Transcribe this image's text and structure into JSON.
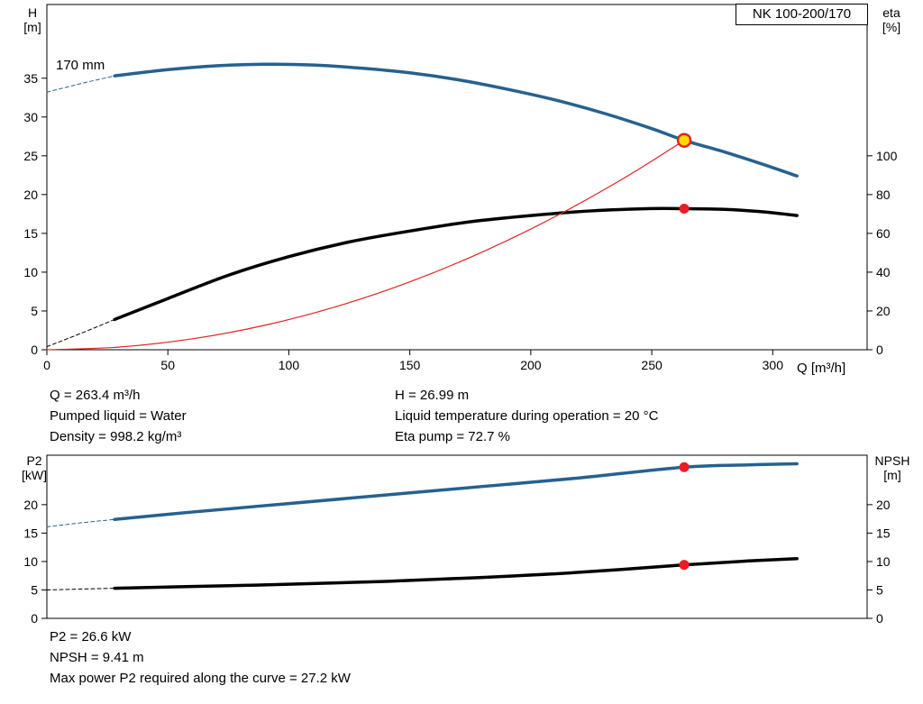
{
  "duty_point": {
    "q_m3h": 263.4,
    "h_m": 26.99,
    "eta_percent": 72.7,
    "p2_kw": 26.6,
    "npsh_m": 9.41,
    "max_p2_along_curve_kw": 27.2,
    "pumped_liquid": "Water",
    "density_kg_m3": 998.2,
    "liquid_temperature_c": 20
  },
  "annotations": {
    "top_left": [
      "Q = 263.4 m³/h",
      "Pumped liquid = Water",
      "Density = 998.2 kg/m³"
    ],
    "top_right": [
      "H = 26.99 m",
      "Liquid temperature during operation = 20 °C",
      "Eta pump = 72.7 %"
    ],
    "bottom": [
      "P2 = 26.6 kW",
      "NPSH = 9.41 m",
      "Max power P2 required along the curve = 27.2 kW"
    ]
  },
  "chart_data": [
    {
      "id": "top",
      "type": "line",
      "title": "NK 100-200/170",
      "curve_label": "170 mm",
      "x_axis": {
        "label": "Q [m³/h]",
        "min": 0,
        "max": 339,
        "ticks": [
          0,
          50,
          100,
          150,
          200,
          250,
          300
        ],
        "show_labels": true
      },
      "y_left": {
        "label_lines": [
          "H",
          "[m]"
        ],
        "min": 0,
        "max": 44.5,
        "ticks": [
          0,
          5,
          10,
          15,
          20,
          25,
          30,
          35
        ]
      },
      "y_right": {
        "label_lines": [
          "eta",
          "[%]"
        ],
        "ticks": [
          0,
          20,
          40,
          60,
          80,
          100
        ],
        "scale": 0.25
      },
      "legend": "off",
      "grid": "off",
      "series": [
        {
          "name": "head-curve-extension",
          "color": "#26618f",
          "width": 1,
          "dash": "4 3",
          "points": [
            [
              0,
              33.2
            ],
            [
              14,
              34.3
            ],
            [
              28,
              35.3
            ]
          ]
        },
        {
          "name": "head-curve",
          "color": "#26618f",
          "width": 3.5,
          "points": [
            [
              28,
              35.3
            ],
            [
              50,
              36.1
            ],
            [
              70,
              36.6
            ],
            [
              90,
              36.8
            ],
            [
              110,
              36.7
            ],
            [
              130,
              36.3
            ],
            [
              150,
              35.7
            ],
            [
              170,
              34.8
            ],
            [
              190,
              33.6
            ],
            [
              210,
              32.2
            ],
            [
              230,
              30.5
            ],
            [
              250,
              28.5
            ],
            [
              263.4,
              26.99
            ],
            [
              280,
              25.5
            ],
            [
              295,
              24.0
            ],
            [
              310,
              22.4
            ]
          ]
        },
        {
          "name": "eta-curve-extension",
          "color": "#000000",
          "width": 1,
          "dash": "4 3",
          "points": [
            [
              0,
              0.4
            ],
            [
              14,
              2.1
            ],
            [
              28,
              3.9
            ]
          ]
        },
        {
          "name": "eta-curve",
          "color": "#000000",
          "width": 3.5,
          "points": [
            [
              28,
              3.9
            ],
            [
              50,
              6.6
            ],
            [
              75,
              9.6
            ],
            [
              100,
              12.0
            ],
            [
              125,
              13.9
            ],
            [
              150,
              15.3
            ],
            [
              175,
              16.5
            ],
            [
              200,
              17.3
            ],
            [
              225,
              17.9
            ],
            [
              250,
              18.2
            ],
            [
              263.4,
              18.18
            ],
            [
              280,
              18.1
            ],
            [
              295,
              17.8
            ],
            [
              310,
              17.3
            ]
          ]
        },
        {
          "name": "system-curve",
          "color": "#e02424",
          "width": 1.2,
          "points": [
            [
              0,
              0
            ],
            [
              30,
              0.35
            ],
            [
              60,
              1.4
            ],
            [
              90,
              3.15
            ],
            [
              120,
              5.6
            ],
            [
              150,
              8.75
            ],
            [
              180,
              12.6
            ],
            [
              210,
              17.15
            ],
            [
              240,
              22.4
            ],
            [
              263.4,
              26.99
            ]
          ]
        }
      ],
      "markers": [
        {
          "name": "duty-point-head",
          "q": 263.4,
          "value": 26.99,
          "r": 7,
          "fill": "#ffd800",
          "stroke": "#e02424",
          "stroke_width": 2.5
        },
        {
          "name": "duty-point-eta",
          "q": 263.4,
          "value": 18.18,
          "r": 5.5,
          "fill": "#eb1c24"
        }
      ]
    },
    {
      "id": "bottom",
      "type": "line",
      "x_axis": {
        "label": "",
        "min": 0,
        "max": 339,
        "ticks": [],
        "show_labels": false
      },
      "y_left": {
        "label_lines": [
          "P2",
          "[kW]"
        ],
        "min": 0,
        "max": 28.7,
        "ticks": [
          0,
          5,
          10,
          15,
          20
        ]
      },
      "y_right": {
        "label_lines": [
          "NPSH",
          "[m]"
        ],
        "ticks": [
          0,
          5,
          10,
          15,
          20
        ],
        "scale": 1
      },
      "legend": "off",
      "grid": "off",
      "series": [
        {
          "name": "p2-curve-extension",
          "color": "#26618f",
          "width": 1,
          "dash": "4 3",
          "points": [
            [
              0,
              16.1
            ],
            [
              14,
              16.8
            ],
            [
              28,
              17.4
            ]
          ]
        },
        {
          "name": "p2-curve",
          "color": "#26618f",
          "width": 3.5,
          "points": [
            [
              28,
              17.4
            ],
            [
              60,
              18.7
            ],
            [
              100,
              20.2
            ],
            [
              140,
              21.7
            ],
            [
              180,
              23.2
            ],
            [
              220,
              24.7
            ],
            [
              263.4,
              26.6
            ],
            [
              290,
              27.0
            ],
            [
              310,
              27.2
            ]
          ]
        },
        {
          "name": "npsh-curve-extension",
          "color": "#000000",
          "width": 1,
          "dash": "4 3",
          "points": [
            [
              0,
              5.0
            ],
            [
              14,
              5.15
            ],
            [
              28,
              5.3
            ]
          ]
        },
        {
          "name": "npsh-curve",
          "color": "#000000",
          "width": 3.5,
          "points": [
            [
              28,
              5.3
            ],
            [
              60,
              5.6
            ],
            [
              100,
              6.0
            ],
            [
              140,
              6.5
            ],
            [
              180,
              7.2
            ],
            [
              220,
              8.1
            ],
            [
              263.4,
              9.41
            ],
            [
              290,
              10.1
            ],
            [
              310,
              10.5
            ]
          ]
        }
      ],
      "markers": [
        {
          "name": "duty-point-p2",
          "q": 263.4,
          "value": 26.6,
          "r": 5.5,
          "fill": "#eb1c24"
        },
        {
          "name": "duty-point-npsh",
          "q": 263.4,
          "value": 9.41,
          "r": 5.5,
          "fill": "#eb1c24"
        }
      ]
    }
  ]
}
